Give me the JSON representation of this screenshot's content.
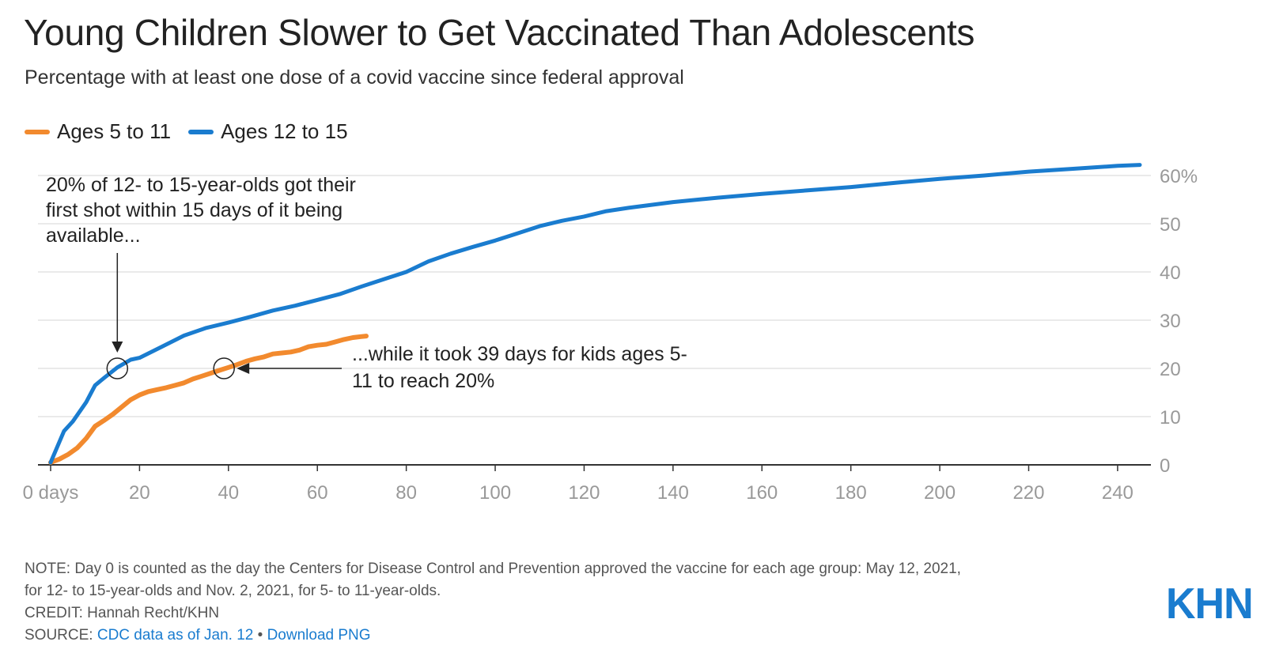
{
  "title": "Young Children Slower to Get Vaccinated Than Adolescents",
  "subtitle": "Percentage with at least one dose of a covid vaccine since federal approval",
  "legend": [
    {
      "label": "Ages 5 to 11",
      "color": "#f28a2e"
    },
    {
      "label": "Ages 12 to 15",
      "color": "#1a7ccf"
    }
  ],
  "chart_data": {
    "type": "line",
    "xlabel": "",
    "ylabel": "",
    "xlim": [
      0,
      245
    ],
    "ylim": [
      0,
      60
    ],
    "x_ticks": [
      0,
      20,
      40,
      60,
      80,
      100,
      120,
      140,
      160,
      180,
      200,
      220,
      240
    ],
    "x_tick_labels": [
      "0 days",
      "20",
      "40",
      "60",
      "80",
      "100",
      "120",
      "140",
      "160",
      "180",
      "200",
      "220",
      "240"
    ],
    "y_ticks": [
      0,
      10,
      20,
      30,
      40,
      50,
      60
    ],
    "y_tick_labels": [
      "0",
      "10",
      "20",
      "30",
      "40",
      "50",
      "60%"
    ],
    "grid": true,
    "series": [
      {
        "name": "Ages 5 to 11",
        "color": "#f28a2e",
        "x": [
          0,
          2,
          4,
          6,
          8,
          10,
          12,
          14,
          16,
          18,
          20,
          22,
          24,
          26,
          28,
          30,
          32,
          34,
          36,
          38,
          40,
          42,
          44,
          46,
          48,
          50,
          52,
          54,
          56,
          58,
          60,
          62,
          64,
          66,
          68,
          70,
          71
        ],
        "y": [
          0.5,
          1.2,
          2.2,
          3.5,
          5.5,
          8.0,
          9.2,
          10.5,
          12.0,
          13.5,
          14.5,
          15.2,
          15.6,
          16.0,
          16.5,
          17.0,
          17.8,
          18.4,
          19.0,
          19.6,
          20.2,
          20.8,
          21.5,
          22.0,
          22.4,
          23.0,
          23.2,
          23.4,
          23.8,
          24.5,
          24.8,
          25.0,
          25.5,
          26.0,
          26.4,
          26.6,
          26.7
        ]
      },
      {
        "name": "Ages 12 to 15",
        "color": "#1a7ccf",
        "x": [
          0,
          3,
          5,
          8,
          10,
          12,
          15,
          18,
          20,
          25,
          30,
          35,
          40,
          45,
          50,
          55,
          60,
          65,
          70,
          75,
          80,
          85,
          90,
          95,
          100,
          105,
          110,
          115,
          120,
          125,
          130,
          140,
          150,
          160,
          170,
          180,
          190,
          200,
          210,
          220,
          230,
          240,
          245
        ],
        "y": [
          0.5,
          7.0,
          9.0,
          13.0,
          16.5,
          18.0,
          20.2,
          21.8,
          22.2,
          24.5,
          26.8,
          28.4,
          29.5,
          30.7,
          32.0,
          33.0,
          34.2,
          35.4,
          37.0,
          38.5,
          40.0,
          42.2,
          43.8,
          45.2,
          46.5,
          48.0,
          49.5,
          50.6,
          51.5,
          52.6,
          53.3,
          54.5,
          55.4,
          56.2,
          56.9,
          57.6,
          58.5,
          59.3,
          60.0,
          60.8,
          61.4,
          62.0,
          62.2
        ]
      }
    ],
    "annotations": [
      {
        "text_lines": [
          "20% of 12- to 15-year-olds got their",
          "first shot within 15 days of it being",
          "available..."
        ],
        "x": 15,
        "y": 20
      },
      {
        "text_lines": [
          "...while it took 39 days for kids ages 5-",
          "11 to reach 20%"
        ],
        "x": 39,
        "y": 20
      }
    ]
  },
  "footer": {
    "note_line1": "NOTE: Day 0 is counted as the day the Centers for Disease Control and Prevention approved the vaccine for each age group: May 12, 2021,",
    "note_line2": "for 12- to 15-year-olds and Nov. 2, 2021, for 5- to 11-year-olds.",
    "credit": "CREDIT: Hannah Recht/KHN",
    "source_prefix": "SOURCE: ",
    "source_link": "CDC data as of Jan. 12",
    "separator": " • ",
    "download_link": "Download PNG"
  },
  "logo_text": "KHN"
}
